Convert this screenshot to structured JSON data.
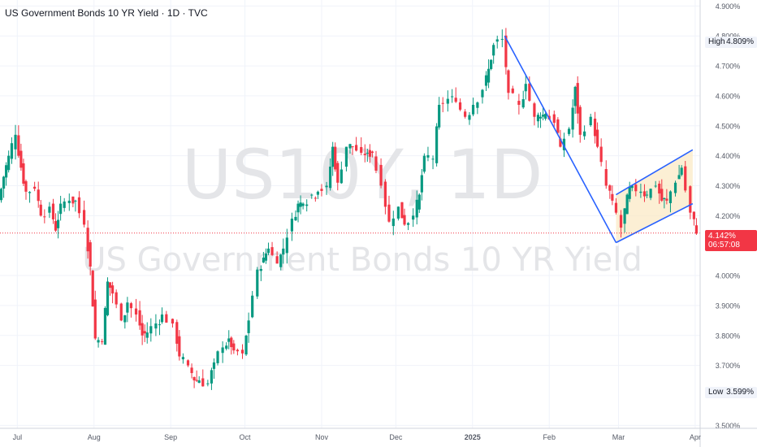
{
  "header": {
    "title": "US Government Bonds 10 YR Yield · 1D · TVC"
  },
  "watermark": {
    "symbol": "US10Y, 1D",
    "name": "US Government Bonds 10 YR Yield"
  },
  "colors": {
    "up": "#089981",
    "down": "#f23645",
    "channel_line": "#2962ff",
    "channel_fill": "#fbe9c6",
    "last_line": "#f23645",
    "axis_text": "#555a66"
  },
  "markers": {
    "high": {
      "label": "High",
      "value": "4.809%"
    },
    "low": {
      "label": "Low",
      "value": "3.599%"
    },
    "last": {
      "value": "4.142%",
      "countdown": "06:57:08"
    }
  },
  "chart_data": {
    "type": "candlestick",
    "title": "US Government Bonds 10 YR Yield · 1D · TVC",
    "y_axis": {
      "unit": "%",
      "ticks": [
        "4.900%",
        "4.800%",
        "4.700%",
        "4.600%",
        "4.500%",
        "4.400%",
        "4.300%",
        "4.200%",
        "4.000%",
        "3.900%",
        "3.800%",
        "3.700%",
        "3.500%"
      ],
      "range": [
        3.49,
        4.92
      ]
    },
    "x_axis": {
      "ticks": [
        "Jul",
        "Aug",
        "Sep",
        "Oct",
        "Nov",
        "Dec",
        "2025",
        "Feb",
        "Mar",
        "Apr"
      ],
      "range": [
        "2024-06-24",
        "2025-04-03"
      ]
    },
    "grid": true,
    "last_price": 4.142,
    "high": 4.809,
    "low": 3.599,
    "closes": [
      {
        "d": "2024-06-24",
        "c": 4.25
      },
      {
        "d": "2024-06-26",
        "c": 4.33
      },
      {
        "d": "2024-06-28",
        "c": 4.4
      },
      {
        "d": "2024-07-01",
        "c": 4.47
      },
      {
        "d": "2024-07-03",
        "c": 4.36
      },
      {
        "d": "2024-07-05",
        "c": 4.28
      },
      {
        "d": "2024-07-09",
        "c": 4.29
      },
      {
        "d": "2024-07-11",
        "c": 4.2
      },
      {
        "d": "2024-07-15",
        "c": 4.23
      },
      {
        "d": "2024-07-17",
        "c": 4.15
      },
      {
        "d": "2024-07-19",
        "c": 4.24
      },
      {
        "d": "2024-07-23",
        "c": 4.25
      },
      {
        "d": "2024-07-25",
        "c": 4.25
      },
      {
        "d": "2024-07-29",
        "c": 4.17
      },
      {
        "d": "2024-07-31",
        "c": 4.03
      },
      {
        "d": "2024-08-02",
        "c": 3.79
      },
      {
        "d": "2024-08-05",
        "c": 3.78
      },
      {
        "d": "2024-08-07",
        "c": 3.98
      },
      {
        "d": "2024-08-09",
        "c": 3.94
      },
      {
        "d": "2024-08-13",
        "c": 3.85
      },
      {
        "d": "2024-08-15",
        "c": 3.91
      },
      {
        "d": "2024-08-19",
        "c": 3.87
      },
      {
        "d": "2024-08-21",
        "c": 3.8
      },
      {
        "d": "2024-08-23",
        "c": 3.81
      },
      {
        "d": "2024-08-27",
        "c": 3.84
      },
      {
        "d": "2024-08-29",
        "c": 3.87
      },
      {
        "d": "2024-09-03",
        "c": 3.84
      },
      {
        "d": "2024-09-05",
        "c": 3.73
      },
      {
        "d": "2024-09-09",
        "c": 3.7
      },
      {
        "d": "2024-09-11",
        "c": 3.65
      },
      {
        "d": "2024-09-13",
        "c": 3.65
      },
      {
        "d": "2024-09-17",
        "c": 3.64
      },
      {
        "d": "2024-09-19",
        "c": 3.71
      },
      {
        "d": "2024-09-23",
        "c": 3.76
      },
      {
        "d": "2024-09-25",
        "c": 3.79
      },
      {
        "d": "2024-09-27",
        "c": 3.75
      },
      {
        "d": "2024-10-01",
        "c": 3.74
      },
      {
        "d": "2024-10-03",
        "c": 3.85
      },
      {
        "d": "2024-10-07",
        "c": 4.02
      },
      {
        "d": "2024-10-09",
        "c": 4.06
      },
      {
        "d": "2024-10-11",
        "c": 4.09
      },
      {
        "d": "2024-10-15",
        "c": 4.04
      },
      {
        "d": "2024-10-17",
        "c": 4.09
      },
      {
        "d": "2024-10-21",
        "c": 4.19
      },
      {
        "d": "2024-10-23",
        "c": 4.24
      },
      {
        "d": "2024-10-25",
        "c": 4.24
      },
      {
        "d": "2024-10-29",
        "c": 4.27
      },
      {
        "d": "2024-10-31",
        "c": 4.28
      },
      {
        "d": "2024-11-04",
        "c": 4.3
      },
      {
        "d": "2024-11-06",
        "c": 4.43
      },
      {
        "d": "2024-11-08",
        "c": 4.31
      },
      {
        "d": "2024-11-12",
        "c": 4.43
      },
      {
        "d": "2024-11-14",
        "c": 4.43
      },
      {
        "d": "2024-11-18",
        "c": 4.41
      },
      {
        "d": "2024-11-20",
        "c": 4.41
      },
      {
        "d": "2024-11-22",
        "c": 4.41
      },
      {
        "d": "2024-11-26",
        "c": 4.3
      },
      {
        "d": "2024-11-29",
        "c": 4.18
      },
      {
        "d": "2024-12-03",
        "c": 4.23
      },
      {
        "d": "2024-12-05",
        "c": 4.17
      },
      {
        "d": "2024-12-09",
        "c": 4.2
      },
      {
        "d": "2024-12-11",
        "c": 4.27
      },
      {
        "d": "2024-12-13",
        "c": 4.4
      },
      {
        "d": "2024-12-17",
        "c": 4.39
      },
      {
        "d": "2024-12-19",
        "c": 4.57
      },
      {
        "d": "2024-12-23",
        "c": 4.59
      },
      {
        "d": "2024-12-26",
        "c": 4.58
      },
      {
        "d": "2024-12-30",
        "c": 4.53
      },
      {
        "d": "2025-01-02",
        "c": 4.57
      },
      {
        "d": "2025-01-06",
        "c": 4.62
      },
      {
        "d": "2025-01-08",
        "c": 4.69
      },
      {
        "d": "2025-01-10",
        "c": 4.77
      },
      {
        "d": "2025-01-14",
        "c": 4.79
      },
      {
        "d": "2025-01-16",
        "c": 4.61
      },
      {
        "d": "2025-01-21",
        "c": 4.57
      },
      {
        "d": "2025-01-23",
        "c": 4.64
      },
      {
        "d": "2025-01-27",
        "c": 4.53
      },
      {
        "d": "2025-01-29",
        "c": 4.53
      },
      {
        "d": "2025-01-31",
        "c": 4.54
      },
      {
        "d": "2025-02-04",
        "c": 4.51
      },
      {
        "d": "2025-02-06",
        "c": 4.43
      },
      {
        "d": "2025-02-10",
        "c": 4.49
      },
      {
        "d": "2025-02-12",
        "c": 4.63
      },
      {
        "d": "2025-02-14",
        "c": 4.47
      },
      {
        "d": "2025-02-19",
        "c": 4.53
      },
      {
        "d": "2025-02-21",
        "c": 4.43
      },
      {
        "d": "2025-02-25",
        "c": 4.3
      },
      {
        "d": "2025-02-27",
        "c": 4.25
      },
      {
        "d": "2025-03-03",
        "c": 4.16
      },
      {
        "d": "2025-03-05",
        "c": 4.27
      },
      {
        "d": "2025-03-07",
        "c": 4.3
      },
      {
        "d": "2025-03-11",
        "c": 4.28
      },
      {
        "d": "2025-03-13",
        "c": 4.27
      },
      {
        "d": "2025-03-17",
        "c": 4.3
      },
      {
        "d": "2025-03-19",
        "c": 4.25
      },
      {
        "d": "2025-03-21",
        "c": 4.25
      },
      {
        "d": "2025-03-25",
        "c": 4.31
      },
      {
        "d": "2025-03-27",
        "c": 4.36
      },
      {
        "d": "2025-03-31",
        "c": 4.21
      },
      {
        "d": "2025-04-02",
        "c": 4.14
      }
    ],
    "drawings": {
      "downtrend_line": [
        {
          "d": "2025-01-14",
          "v": 4.8
        },
        {
          "d": "2025-02-28",
          "v": 4.11
        }
      ],
      "channel_upper": [
        {
          "d": "2025-02-28",
          "v": 4.27
        },
        {
          "d": "2025-03-31",
          "v": 4.42
        }
      ],
      "channel_lower": [
        {
          "d": "2025-02-28",
          "v": 4.11
        },
        {
          "d": "2025-03-31",
          "v": 4.24
        }
      ]
    }
  }
}
